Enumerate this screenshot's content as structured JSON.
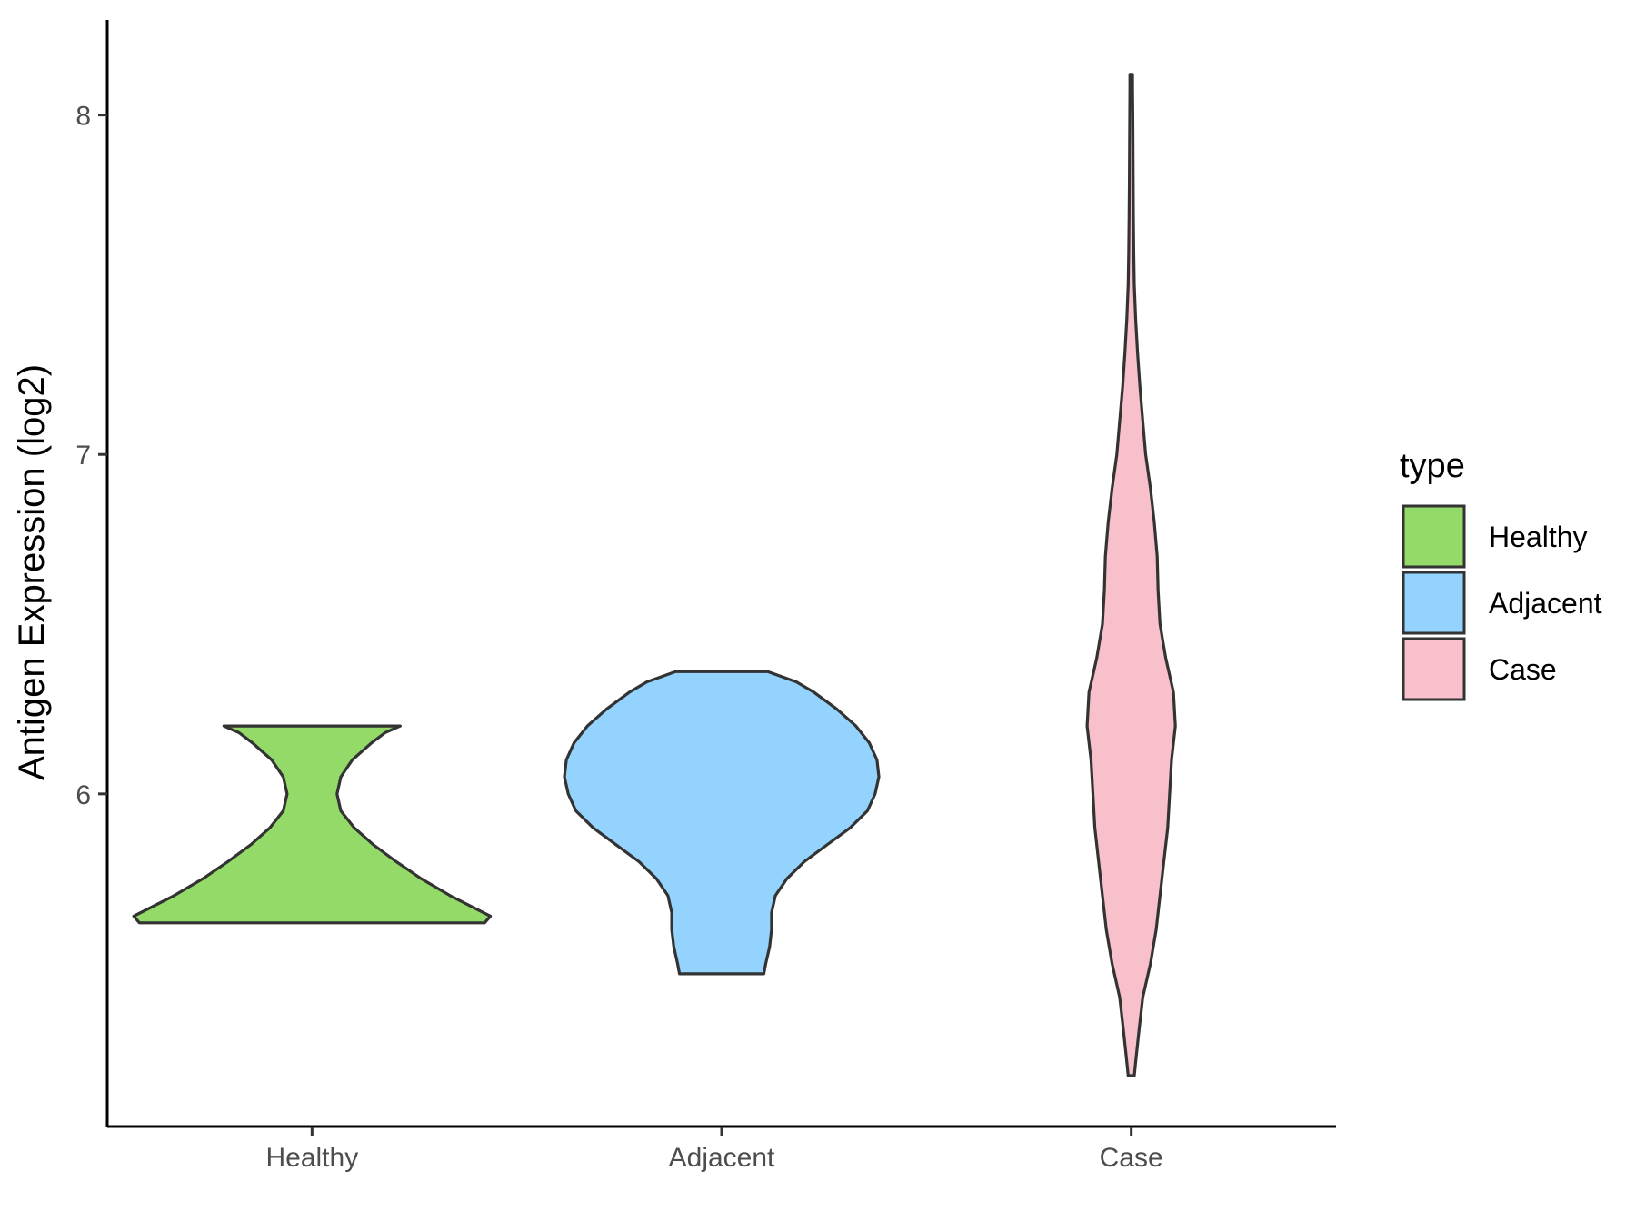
{
  "chart_data": {
    "type": "violin",
    "title": "",
    "xlabel": "",
    "ylabel": "Antigen Expression (log2)",
    "categories": [
      "Healthy",
      "Adjacent",
      "Case"
    ],
    "y_ticks": [
      6,
      7,
      8
    ],
    "ylim": [
      5.02,
      8.28
    ],
    "grid": false,
    "legend": {
      "title": "type",
      "position": "right",
      "entries": [
        "Healthy",
        "Adjacent",
        "Case"
      ]
    },
    "colors": {
      "Healthy": "#93da69",
      "Adjacent": "#93d3fd",
      "Case": "#f7c0cb",
      "outline": "#333333"
    },
    "series": [
      {
        "name": "Healthy",
        "min": 5.62,
        "max": 6.2,
        "density_profile": [
          [
            5.62,
            0.9
          ],
          [
            5.64,
            0.93
          ],
          [
            5.66,
            0.86
          ],
          [
            5.7,
            0.72
          ],
          [
            5.75,
            0.57
          ],
          [
            5.8,
            0.44
          ],
          [
            5.85,
            0.32
          ],
          [
            5.9,
            0.22
          ],
          [
            5.95,
            0.15
          ],
          [
            6.0,
            0.13
          ],
          [
            6.05,
            0.15
          ],
          [
            6.1,
            0.21
          ],
          [
            6.15,
            0.31
          ],
          [
            6.18,
            0.38
          ],
          [
            6.2,
            0.46
          ]
        ]
      },
      {
        "name": "Adjacent",
        "min": 5.47,
        "max": 6.36,
        "density_profile": [
          [
            5.47,
            0.22
          ],
          [
            5.5,
            0.23
          ],
          [
            5.55,
            0.25
          ],
          [
            5.6,
            0.26
          ],
          [
            5.65,
            0.26
          ],
          [
            5.7,
            0.28
          ],
          [
            5.75,
            0.34
          ],
          [
            5.8,
            0.43
          ],
          [
            5.85,
            0.55
          ],
          [
            5.9,
            0.67
          ],
          [
            5.95,
            0.76
          ],
          [
            6.0,
            0.8
          ],
          [
            6.05,
            0.82
          ],
          [
            6.1,
            0.81
          ],
          [
            6.15,
            0.77
          ],
          [
            6.2,
            0.7
          ],
          [
            6.25,
            0.6
          ],
          [
            6.3,
            0.48
          ],
          [
            6.33,
            0.39
          ],
          [
            6.36,
            0.24
          ]
        ]
      },
      {
        "name": "Case",
        "min": 5.17,
        "max": 8.12,
        "density_profile": [
          [
            5.17,
            0.016
          ],
          [
            5.22,
            0.025
          ],
          [
            5.3,
            0.04
          ],
          [
            5.4,
            0.06
          ],
          [
            5.5,
            0.1
          ],
          [
            5.6,
            0.13
          ],
          [
            5.7,
            0.15
          ],
          [
            5.8,
            0.17
          ],
          [
            5.9,
            0.19
          ],
          [
            6.0,
            0.2
          ],
          [
            6.1,
            0.21
          ],
          [
            6.2,
            0.23
          ],
          [
            6.3,
            0.22
          ],
          [
            6.4,
            0.18
          ],
          [
            6.5,
            0.15
          ],
          [
            6.6,
            0.14
          ],
          [
            6.7,
            0.135
          ],
          [
            6.8,
            0.12
          ],
          [
            6.9,
            0.1
          ],
          [
            7.0,
            0.075
          ],
          [
            7.1,
            0.06
          ],
          [
            7.2,
            0.045
          ],
          [
            7.3,
            0.033
          ],
          [
            7.4,
            0.023
          ],
          [
            7.5,
            0.016
          ],
          [
            7.6,
            0.013
          ],
          [
            7.7,
            0.011
          ],
          [
            7.8,
            0.01
          ],
          [
            7.9,
            0.009
          ],
          [
            8.0,
            0.008
          ],
          [
            8.08,
            0.007
          ],
          [
            8.12,
            0.007
          ]
        ]
      }
    ]
  }
}
